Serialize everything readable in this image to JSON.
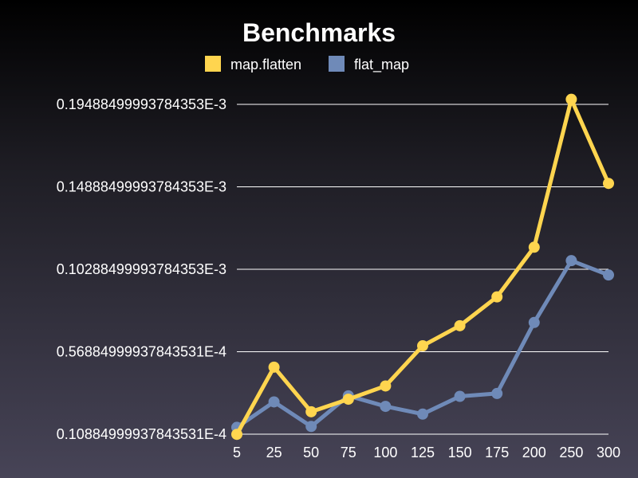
{
  "chart_data": {
    "type": "line",
    "title": "Benchmarks",
    "xlabel": "",
    "ylabel": "",
    "x": [
      5,
      25,
      50,
      75,
      100,
      125,
      150,
      175,
      200,
      250,
      300
    ],
    "y_ticks": [
      {
        "value": 1.0884999937843531e-05,
        "label": "0.10884999937843531E-4"
      },
      {
        "value": 5.688499993784353e-05,
        "label": "0.56884999937843531E-4"
      },
      {
        "value": 0.00010288499993784353,
        "label": "0.10288499993784353E-3"
      },
      {
        "value": 0.00014888499993784352,
        "label": "0.14888499993784353E-3"
      },
      {
        "value": 0.00019488499993784353,
        "label": "0.19488499993784353E-3"
      }
    ],
    "ylim": [
      1.0884999937843531e-05,
      0.00019488499993784353
    ],
    "legend_position": "top-center",
    "grid": true,
    "series": [
      {
        "name": "map.flatten",
        "color": "#ffd54f",
        "values": [
          1.08e-05,
          4.83e-05,
          2.34e-05,
          3.04e-05,
          3.78e-05,
          6.02e-05,
          7.14e-05,
          8.75e-05,
          0.0001152,
          0.0001977,
          0.0001508
        ]
      },
      {
        "name": "flat_map",
        "color": "#6f8ab8",
        "values": [
          1.47e-05,
          2.89e-05,
          1.52e-05,
          3.23e-05,
          2.64e-05,
          2.21e-05,
          3.2e-05,
          3.36e-05,
          7.32e-05,
          0.0001077,
          9.97e-05
        ]
      }
    ]
  }
}
